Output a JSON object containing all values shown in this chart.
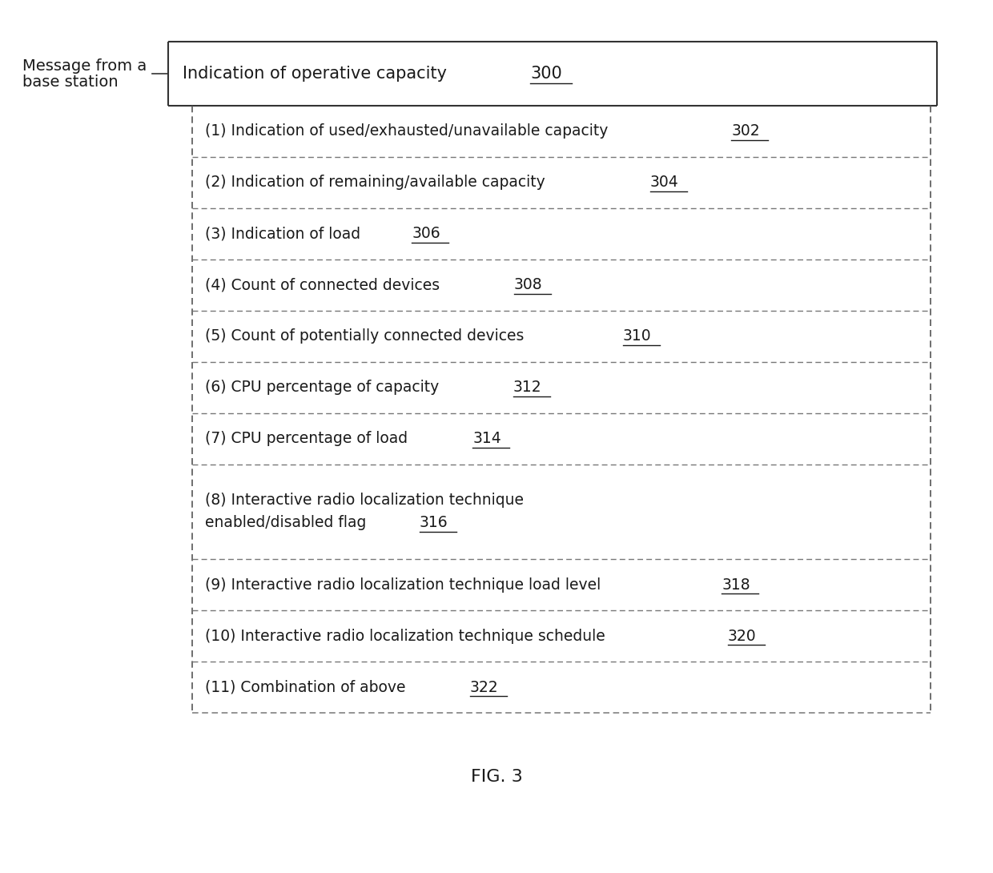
{
  "title": "FIG. 3",
  "label_left_line1": "Message from a",
  "label_left_line2": "base station",
  "header_text": "Indication of operative capacity",
  "header_ref": "300",
  "items": [
    {
      "text": "(1) Indication of used/exhausted/unavailable capacity",
      "ref": "302",
      "multiline": false
    },
    {
      "text": "(2) Indication of remaining/available capacity",
      "ref": "304",
      "multiline": false
    },
    {
      "text": "(3) Indication of load",
      "ref": "306",
      "multiline": false
    },
    {
      "text": "(4) Count of connected devices",
      "ref": "308",
      "multiline": false
    },
    {
      "text": "(5) Count of potentially connected devices",
      "ref": "310",
      "multiline": false
    },
    {
      "text": "(6) CPU percentage of capacity",
      "ref": "312",
      "multiline": false
    },
    {
      "text": "(7) CPU percentage of load",
      "ref": "314",
      "multiline": false
    },
    {
      "text_line1": "(8) Interactive radio localization technique",
      "text_line2": "enabled/disabled flag",
      "ref": "316",
      "multiline": true
    },
    {
      "text": "(9) Interactive radio localization technique load level",
      "ref": "318",
      "multiline": false
    },
    {
      "text": "(10) Interactive radio localization technique schedule",
      "ref": "320",
      "multiline": false
    },
    {
      "text": "(11) Combination of above",
      "ref": "322",
      "multiline": false
    }
  ],
  "bg_color": "#ffffff",
  "text_color": "#1a1a1a",
  "border_color": "#333333",
  "dashed_color": "#777777",
  "font_size_header": 15,
  "font_size_items": 13.5,
  "font_size_label": 14,
  "font_size_title": 16
}
